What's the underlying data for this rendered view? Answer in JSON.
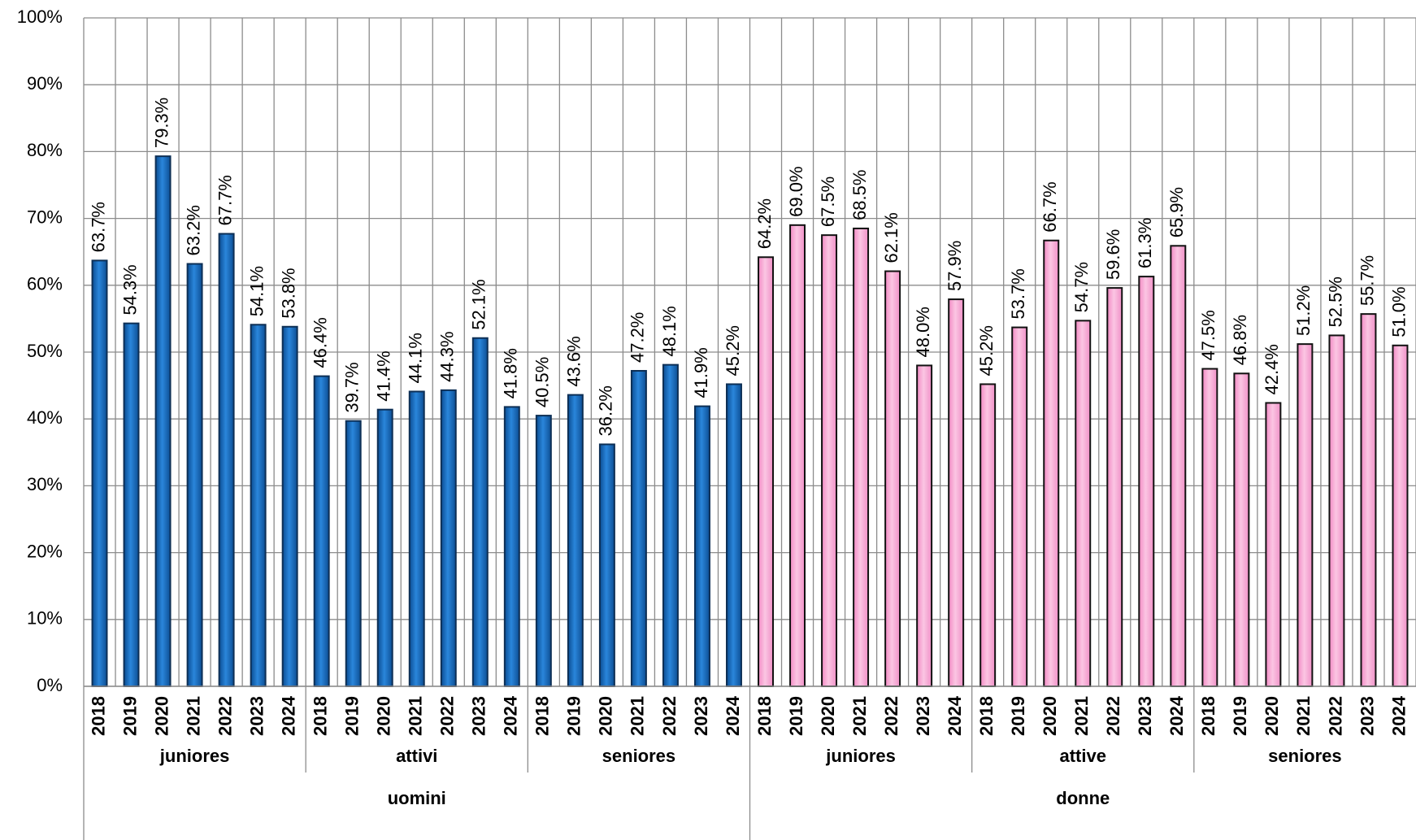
{
  "chart_data": {
    "type": "bar",
    "ylim": [
      0,
      100
    ],
    "yticks": [
      {
        "value": 0,
        "label": "0%"
      },
      {
        "value": 10,
        "label": "10%"
      },
      {
        "value": 20,
        "label": "20%"
      },
      {
        "value": 30,
        "label": "30%"
      },
      {
        "value": 40,
        "label": "40%"
      },
      {
        "value": 50,
        "label": "50%"
      },
      {
        "value": 60,
        "label": "60%"
      },
      {
        "value": 70,
        "label": "70%"
      },
      {
        "value": 80,
        "label": "80%"
      },
      {
        "value": 90,
        "label": "90%"
      },
      {
        "value": 100,
        "label": "100%"
      }
    ],
    "grid": true,
    "groups": [
      {
        "label": "uomini",
        "color": "#1a6fc4",
        "stroke": "#0d2f55",
        "subgroups": [
          {
            "label": "juniores",
            "categories": [
              "2018",
              "2019",
              "2020",
              "2021",
              "2022",
              "2023",
              "2024"
            ],
            "values": [
              63.7,
              54.3,
              79.3,
              63.2,
              67.7,
              54.1,
              53.8
            ],
            "value_labels": [
              "63.7%",
              "54.3%",
              "79.3%",
              "63.2%",
              "67.7%",
              "54.1%",
              "53.8%"
            ]
          },
          {
            "label": "attivi",
            "categories": [
              "2018",
              "2019",
              "2020",
              "2021",
              "2022",
              "2023",
              "2024"
            ],
            "values": [
              46.4,
              39.7,
              41.4,
              44.1,
              44.3,
              52.1,
              41.8
            ],
            "value_labels": [
              "46.4%",
              "39.7%",
              "41.4%",
              "44.1%",
              "44.3%",
              "52.1%",
              "41.8%"
            ]
          },
          {
            "label": "seniores",
            "categories": [
              "2018",
              "2019",
              "2020",
              "2021",
              "2022",
              "2023",
              "2024"
            ],
            "values": [
              40.5,
              43.6,
              36.2,
              47.2,
              48.1,
              41.9,
              45.2
            ],
            "value_labels": [
              "40.5%",
              "43.6%",
              "36.2%",
              "47.2%",
              "48.1%",
              "41.9%",
              "45.2%"
            ]
          }
        ]
      },
      {
        "label": "donne",
        "color": "#f7a8d4",
        "stroke": "#111111",
        "subgroups": [
          {
            "label": "juniores",
            "categories": [
              "2018",
              "2019",
              "2020",
              "2021",
              "2022",
              "2023",
              "2024"
            ],
            "values": [
              64.2,
              69.0,
              67.5,
              68.5,
              62.1,
              48.0,
              57.9
            ],
            "value_labels": [
              "64.2%",
              "69.0%",
              "67.5%",
              "68.5%",
              "62.1%",
              "48.0%",
              "57.9%"
            ]
          },
          {
            "label": "attive",
            "categories": [
              "2018",
              "2019",
              "2020",
              "2021",
              "2022",
              "2023",
              "2024"
            ],
            "values": [
              45.2,
              53.7,
              66.7,
              54.7,
              59.6,
              61.3,
              65.9
            ],
            "value_labels": [
              "45.2%",
              "53.7%",
              "66.7%",
              "54.7%",
              "59.6%",
              "61.3%",
              "65.9%"
            ]
          },
          {
            "label": "seniores",
            "categories": [
              "2018",
              "2019",
              "2020",
              "2021",
              "2022",
              "2023",
              "2024"
            ],
            "values": [
              47.5,
              46.8,
              42.4,
              51.2,
              52.5,
              55.7,
              51.0
            ],
            "value_labels": [
              "47.5%",
              "46.8%",
              "42.4%",
              "51.2%",
              "52.5%",
              "55.7%",
              "51.0%"
            ]
          }
        ]
      }
    ]
  }
}
